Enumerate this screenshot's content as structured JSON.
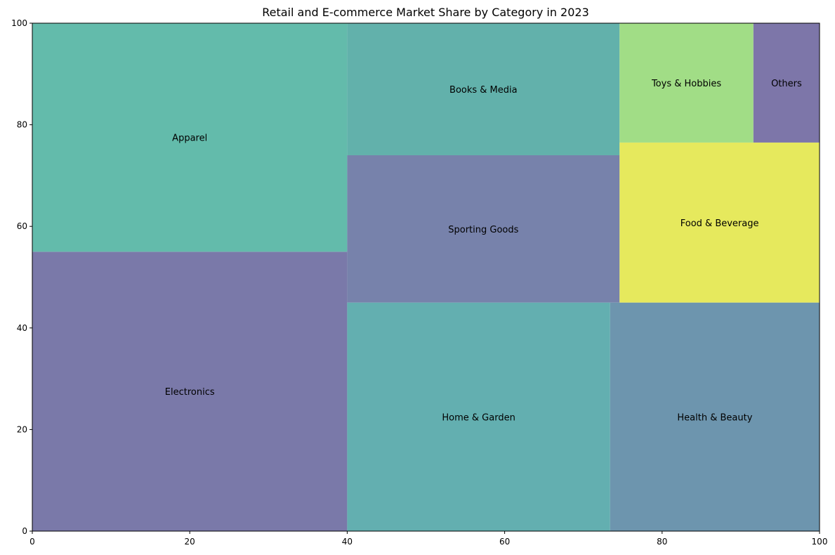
{
  "chart_data": {
    "type": "treemap",
    "title": "Retail and E-commerce Market Share by Category in 2023",
    "xlabel": "",
    "ylabel": "",
    "xlim": [
      0,
      100
    ],
    "ylim": [
      0,
      100
    ],
    "xticks": [
      0,
      20,
      40,
      60,
      80,
      100
    ],
    "yticks": [
      0,
      20,
      40,
      60,
      80,
      100
    ],
    "grid": false,
    "items": [
      {
        "label": "Electronics",
        "x": 0,
        "y": 0,
        "w": 40,
        "h": 55,
        "color": "#7a79a9"
      },
      {
        "label": "Apparel",
        "x": 0,
        "y": 55,
        "w": 40,
        "h": 45,
        "color": "#63bbab"
      },
      {
        "label": "Home & Garden",
        "x": 40,
        "y": 0,
        "w": 33.4,
        "h": 45,
        "color": "#63afb0"
      },
      {
        "label": "Sporting Goods",
        "x": 40,
        "y": 45,
        "w": 34.6,
        "h": 29,
        "color": "#7782ab"
      },
      {
        "label": "Books & Media",
        "x": 40,
        "y": 74,
        "w": 34.6,
        "h": 26,
        "color": "#62b1ab"
      },
      {
        "label": "Health & Beauty",
        "x": 73.4,
        "y": 0,
        "w": 26.6,
        "h": 45,
        "color": "#6d95ae"
      },
      {
        "label": "Food & Beverage",
        "x": 74.6,
        "y": 45,
        "w": 25.4,
        "h": 31.5,
        "color": "#e6e95d"
      },
      {
        "label": "Toys & Hobbies",
        "x": 74.6,
        "y": 76.5,
        "w": 17,
        "h": 23.5,
        "color": "#a1dd86"
      },
      {
        "label": "Others",
        "x": 91.6,
        "y": 76.5,
        "w": 8.4,
        "h": 23.5,
        "color": "#7d76a9"
      }
    ]
  }
}
